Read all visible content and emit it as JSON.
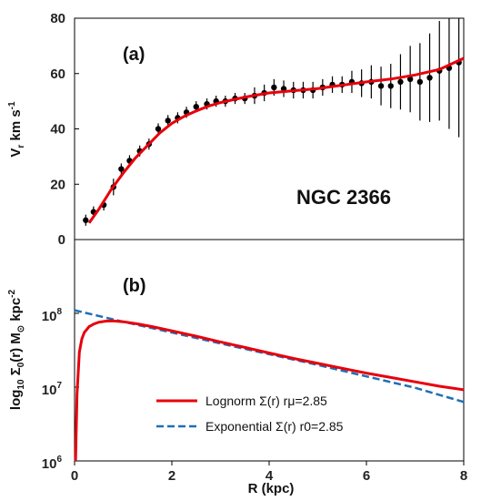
{
  "chart_data": [
    {
      "type": "scatter",
      "panel_label": "(a)",
      "annotation": "NGC 2366",
      "ylabel": "V_r km s^-1",
      "ylim": [
        0,
        80
      ],
      "yticks": [
        0,
        20,
        40,
        60,
        80
      ],
      "xlim": [
        0,
        8
      ],
      "grid": false,
      "series": [
        {
          "kind": "points_with_errorbars",
          "color": "#000000",
          "x": [
            0.23,
            0.39,
            0.6,
            0.8,
            0.96,
            1.13,
            1.34,
            1.53,
            1.72,
            1.92,
            2.12,
            2.3,
            2.5,
            2.72,
            2.91,
            3.1,
            3.3,
            3.5,
            3.7,
            3.9,
            4.1,
            4.3,
            4.5,
            4.7,
            4.9,
            5.1,
            5.3,
            5.5,
            5.7,
            5.9,
            6.1,
            6.3,
            6.5,
            6.7,
            6.9,
            7.1,
            7.3,
            7.5,
            7.7,
            7.9
          ],
          "y": [
            7,
            10,
            12.5,
            19,
            25.5,
            28.5,
            32,
            34.5,
            40,
            43,
            44,
            46,
            48,
            49,
            50,
            50,
            51,
            51,
            52,
            53,
            55,
            54.5,
            54,
            54,
            54,
            55,
            56,
            56,
            57,
            56.5,
            57,
            55.5,
            55.5,
            57,
            58,
            57,
            58.5,
            61,
            62,
            64
          ],
          "yerr": [
            2,
            2,
            2,
            3,
            2,
            2,
            2,
            2,
            2,
            2,
            2,
            2,
            2,
            2,
            2,
            2,
            2,
            2,
            3,
            3,
            3,
            3,
            3,
            3,
            3,
            3,
            3,
            3,
            4,
            5,
            6,
            7,
            8,
            10,
            12,
            14,
            16,
            18,
            22,
            27
          ]
        },
        {
          "kind": "line",
          "color": "#e8000b",
          "x": [
            0.3,
            0.5,
            0.75,
            1.0,
            1.25,
            1.5,
            1.75,
            2.0,
            2.25,
            2.5,
            2.75,
            3.0,
            3.5,
            4.0,
            4.5,
            5.0,
            5.5,
            6.0,
            6.5,
            7.0,
            7.5,
            8.0
          ],
          "y": [
            6,
            11,
            18,
            24,
            29.5,
            34,
            38.5,
            42,
            44.5,
            46.5,
            48.2,
            49.5,
            51.5,
            53,
            53.8,
            54.6,
            55.8,
            57,
            58,
            59.5,
            61.5,
            65.5
          ]
        }
      ]
    },
    {
      "type": "line",
      "panel_label": "(b)",
      "ylabel": "log10 Σ0(r) M⊙ kpc^-2",
      "xlabel": "R (kpc)",
      "yscale": "log",
      "ylim": [
        1000000,
        1000000000
      ],
      "yticks": [
        {
          "value": 1000000,
          "base": "10",
          "exp": "6"
        },
        {
          "value": 10000000,
          "base": "10",
          "exp": "7"
        },
        {
          "value": 100000000,
          "base": "10",
          "exp": "8"
        }
      ],
      "xlim": [
        0,
        8
      ],
      "xticks": [
        0,
        2,
        4,
        6,
        8
      ],
      "grid": false,
      "legend_position": "bottom-right",
      "series": [
        {
          "name": "Lognorm Σ(r) rμ=2.85",
          "color": "#e8000b",
          "dash": "solid",
          "x": [
            0.02,
            0.05,
            0.1,
            0.15,
            0.2,
            0.3,
            0.4,
            0.5,
            0.65,
            0.8,
            1.0,
            1.3,
            1.6,
            2.0,
            2.5,
            3.0,
            3.5,
            4.0,
            4.5,
            5.0,
            5.5,
            6.0,
            6.5,
            7.0,
            7.5,
            8.0
          ],
          "y": [
            1000000,
            8000000,
            30000000,
            45000000,
            55000000,
            66000000,
            72000000,
            76000000,
            78500000,
            79000000,
            77000000,
            72000000,
            66000000,
            58000000,
            49000000,
            41000000,
            34500000,
            29000000,
            24500000,
            21000000,
            18000000,
            15500000,
            13500000,
            11800000,
            10300000,
            9200000
          ]
        },
        {
          "name": "Exponential Σ(r) r0=2.85",
          "color": "#1f6fb5",
          "dash": "dashed",
          "x": [
            0,
            1,
            2,
            3,
            4,
            5,
            6,
            7,
            8
          ],
          "y": [
            110000000,
            77000000,
            55000000,
            39000000,
            28000000,
            20000000,
            14000000,
            9800000,
            6300000
          ]
        }
      ]
    }
  ]
}
